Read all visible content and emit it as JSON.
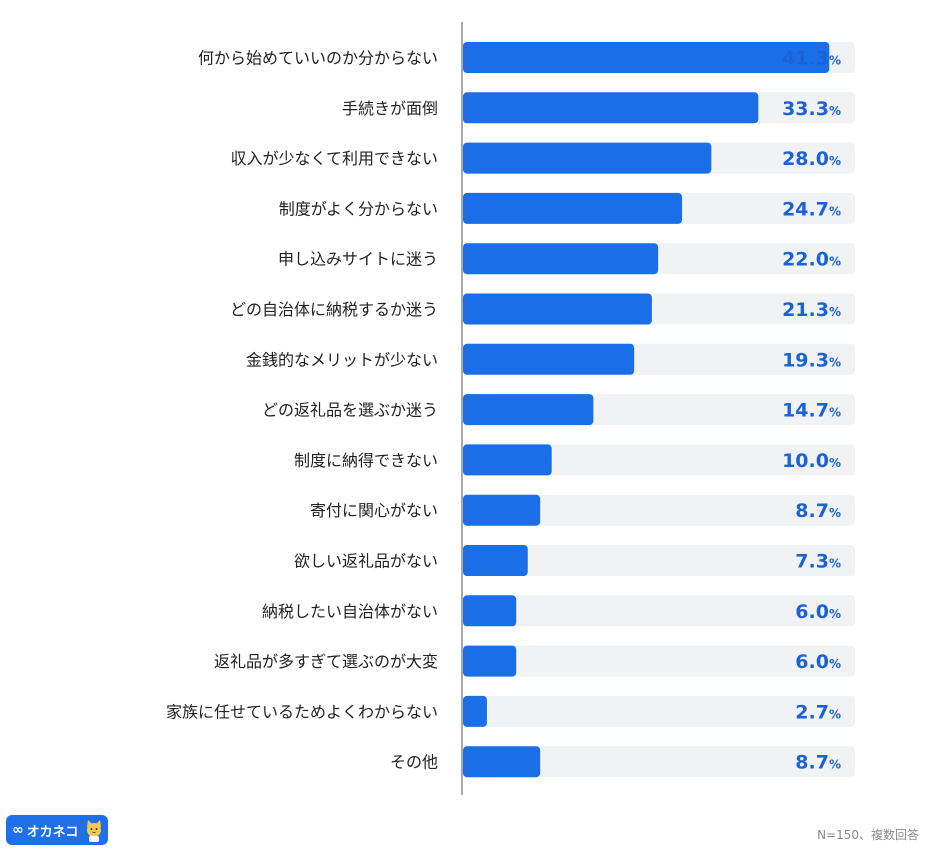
{
  "chart_data": {
    "type": "bar",
    "orientation": "horizontal",
    "categories": [
      "何から始めていいのか分からない",
      "手続きが面倒",
      "収入が少なくて利用できない",
      "制度がよく分からない",
      "申し込みサイトに迷う",
      "どの自治体に納税するか迷う",
      "金銭的なメリットが少ない",
      "どの返礼品を選ぶか迷う",
      "制度に納得できない",
      "寄付に関心がない",
      "欲しい返礼品がない",
      "納税したい自治体がない",
      "返礼品が多すぎて選ぶのが大変",
      "家族に任せているためよくわからない",
      "その他"
    ],
    "values": [
      41.3,
      33.3,
      28.0,
      24.7,
      22.0,
      21.3,
      19.3,
      14.7,
      10.0,
      8.7,
      7.3,
      6.0,
      6.0,
      2.7,
      8.7
    ],
    "value_labels": [
      "41.3",
      "33.3",
      "28.0",
      "24.7",
      "22.0",
      "21.3",
      "19.3",
      "14.7",
      "10.0",
      "8.7",
      "7.3",
      "6.0",
      "6.0",
      "2.7",
      "8.7"
    ],
    "unit": "%",
    "xlim": [
      0,
      44.2
    ],
    "bar_color": "#1a6fe6",
    "track_color": "#f1f2f4",
    "axis_color": "#8c8c8c",
    "value_color": "#1a63d6"
  },
  "footer": {
    "logo_text": "オカネコ",
    "logo_icon": "infinity-icon",
    "mascot_icon": "cat-mascot-icon",
    "logo_color": "#1e6fe8",
    "note": "N=150、複数回答"
  }
}
